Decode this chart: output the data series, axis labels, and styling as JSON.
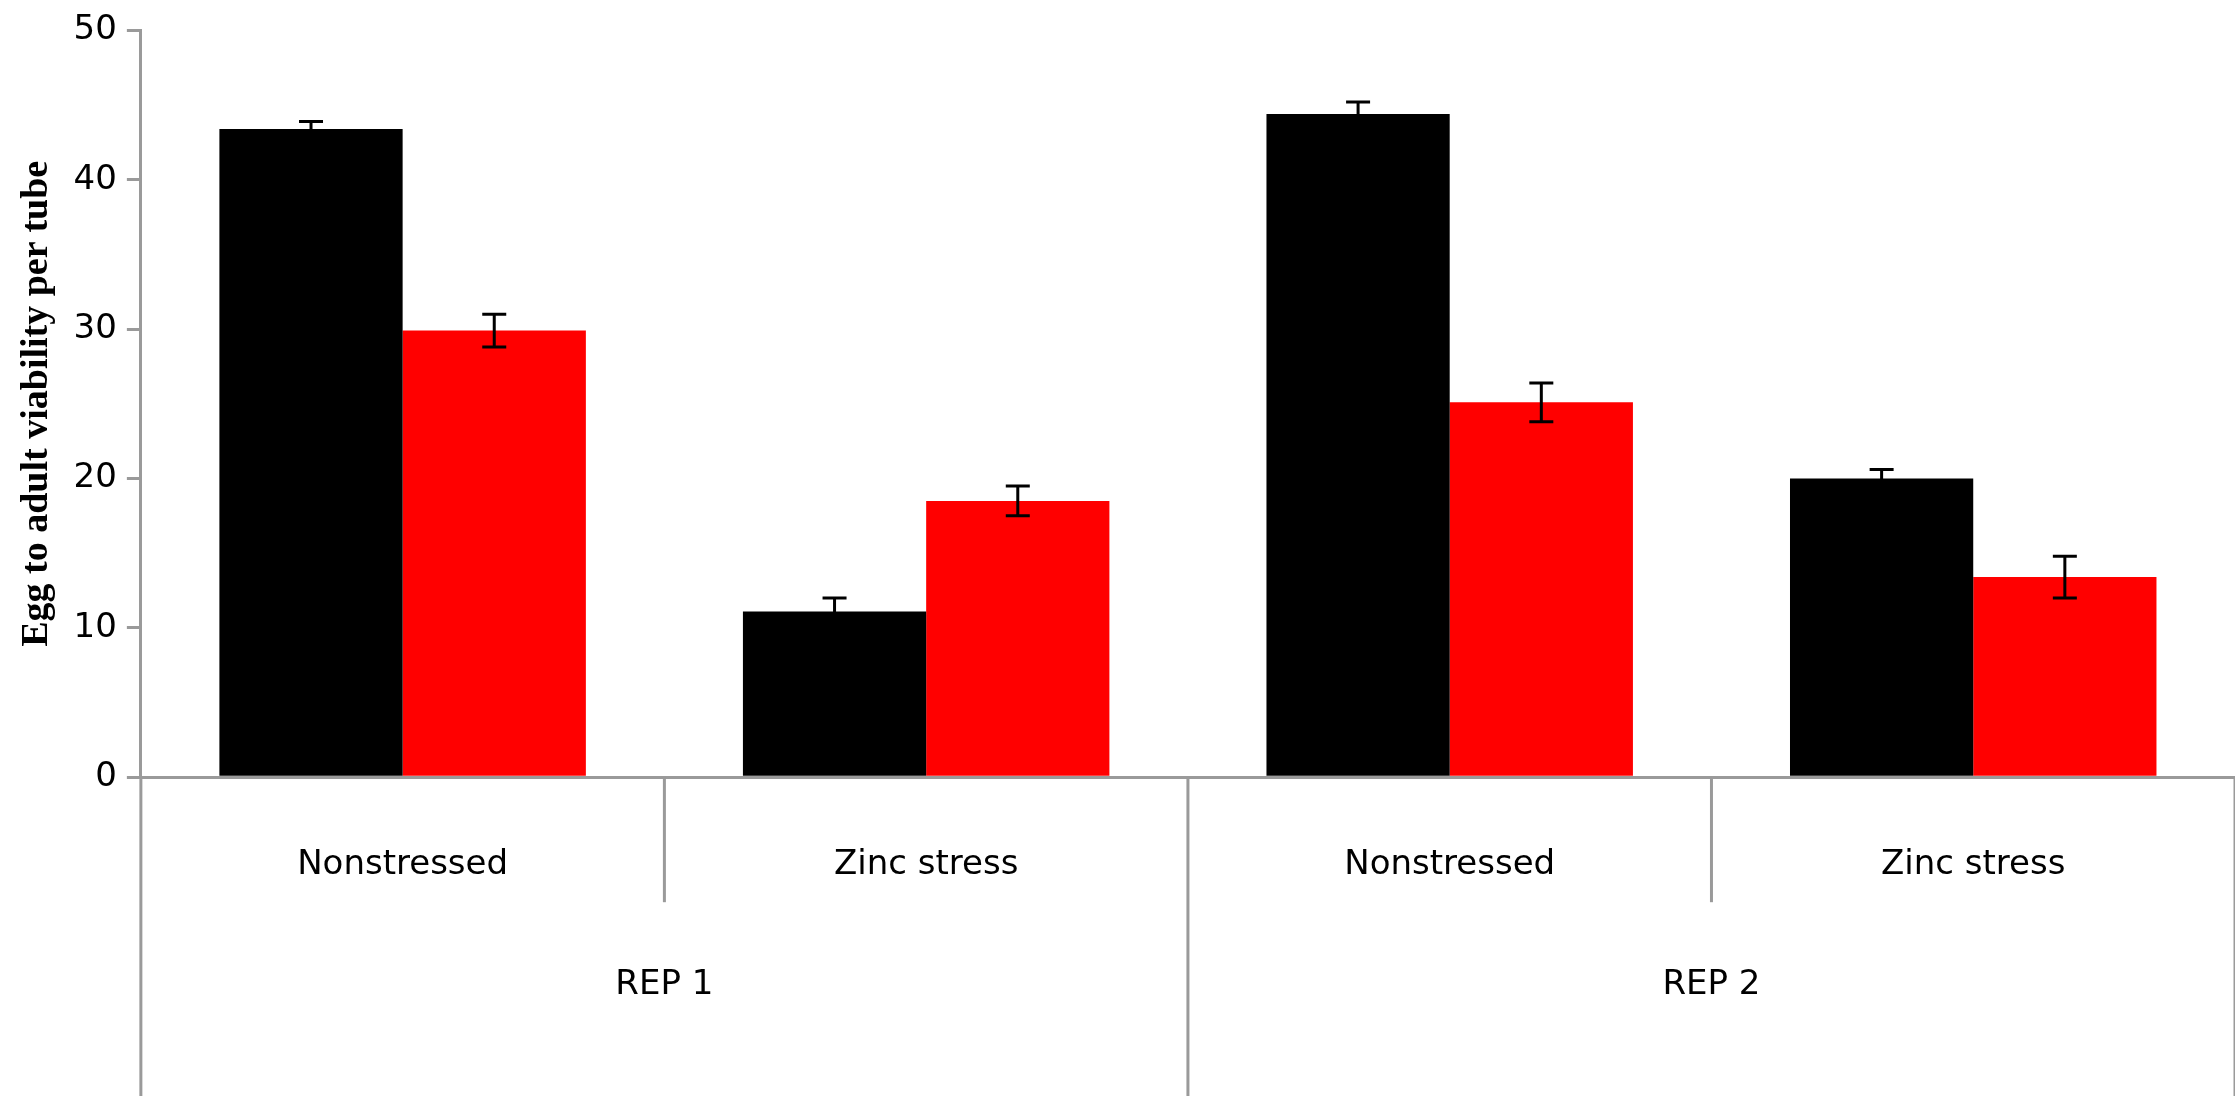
{
  "chart_data": {
    "type": "bar",
    "ylabel": "Egg to adult viability per tube",
    "categories": [
      "Nonstressed",
      "Zinc stress",
      "Nonstressed",
      "Zinc stress"
    ],
    "series": [
      {
        "color": "#000000",
        "values": [
          43.4,
          11.1,
          44.4,
          20.0
        ],
        "errors": [
          0.5,
          0.9,
          0.8,
          0.6
        ]
      },
      {
        "color": "#ff0000",
        "values": [
          29.9,
          18.5,
          25.1,
          13.4
        ],
        "errors": [
          1.1,
          1.0,
          1.3,
          1.4
        ]
      }
    ],
    "ylim": [
      0,
      50
    ],
    "yticks": [
      0,
      10,
      20,
      30,
      40,
      50
    ],
    "grid": false,
    "legend": false,
    "annotations": [
      "REP 1",
      "REP 2"
    ]
  }
}
